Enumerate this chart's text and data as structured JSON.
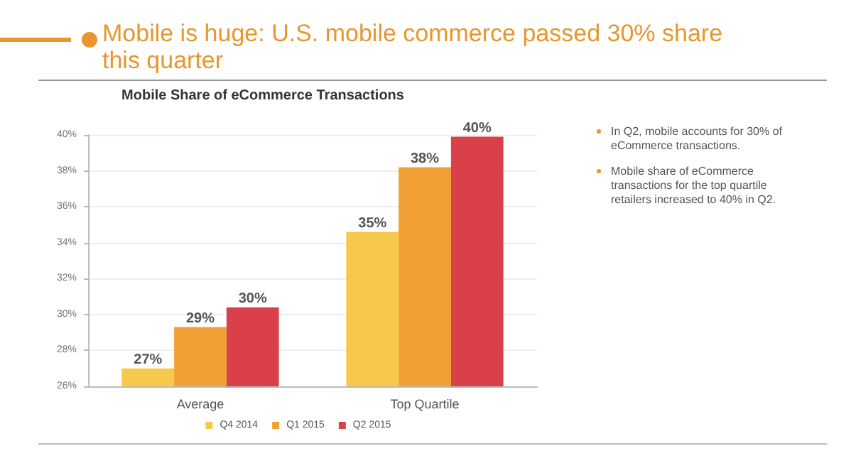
{
  "chart_data": {
    "type": "bar",
    "title": "Mobile is huge: U.S. mobile commerce passed 30% share this quarter",
    "subtitle": "Mobile Share of eCommerce Transactions",
    "categories": [
      "Average",
      "Top Quartile"
    ],
    "series": [
      {
        "name": "Q4 2014",
        "color": "#f7c94b",
        "values": [
          27,
          34.6
        ],
        "value_labels": [
          "27%",
          "35%"
        ]
      },
      {
        "name": "Q1 2015",
        "color": "#f1a033",
        "values": [
          29.3,
          38.2
        ],
        "value_labels": [
          "29%",
          "38%"
        ]
      },
      {
        "name": "Q2 2015",
        "color": "#d9404a",
        "values": [
          30.4,
          39.9
        ],
        "value_labels": [
          "30%",
          "40%"
        ]
      }
    ],
    "ylim": [
      26,
      40
    ],
    "yticks": [
      {
        "value": 26,
        "label": "26%"
      },
      {
        "value": 28,
        "label": "28%"
      },
      {
        "value": 30,
        "label": "30%"
      },
      {
        "value": 32,
        "label": "32%"
      },
      {
        "value": 34,
        "label": "34%"
      },
      {
        "value": 36,
        "label": "36%"
      },
      {
        "value": 38,
        "label": "38%"
      },
      {
        "value": 40,
        "label": "40%"
      }
    ],
    "grid": "y",
    "legend": "bottom",
    "annotations": [
      "In Q2, mobile accounts for 30% of eCommerce transactions.",
      "Mobile share of eCommerce transactions for the top quartile retailers increased to 40% in Q2."
    ]
  }
}
